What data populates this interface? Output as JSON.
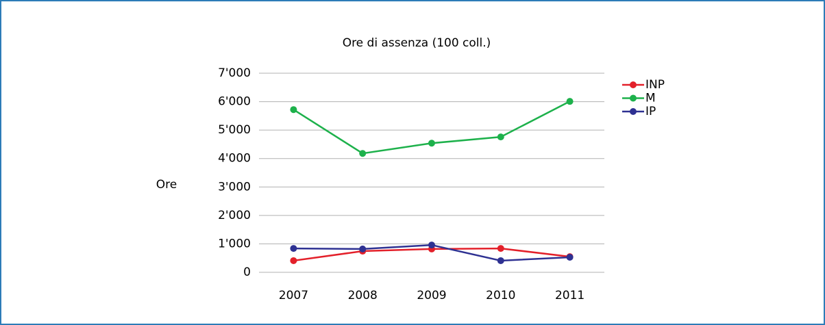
{
  "chart_data": {
    "type": "line",
    "title": "Ore di assenza (100 coll.)",
    "y_label": "Ore",
    "categories": [
      "2007",
      "2008",
      "2009",
      "2010",
      "2011"
    ],
    "series": [
      {
        "name": "INP",
        "color": "#e3202a",
        "values": [
          410,
          745,
          820,
          840,
          550
        ]
      },
      {
        "name": "M",
        "color": "#1db14b",
        "values": [
          5720,
          4180,
          4540,
          4760,
          6010
        ]
      },
      {
        "name": "IP",
        "color": "#2e3192",
        "values": [
          840,
          820,
          960,
          410,
          530
        ]
      }
    ],
    "ylim": [
      0,
      7000
    ],
    "yticks": [
      0,
      {
        "value": 1000,
        "label": "1'000"
      },
      {
        "value": 2000,
        "label": "2'000"
      },
      {
        "value": 3000,
        "label": "3'000"
      },
      {
        "value": 4000,
        "label": "4'000"
      },
      {
        "value": 5000,
        "label": "5'000"
      },
      {
        "value": 6000,
        "label": "6'000"
      },
      {
        "value": 7000,
        "label": "7'000"
      }
    ],
    "grid": true,
    "legend": "right"
  }
}
